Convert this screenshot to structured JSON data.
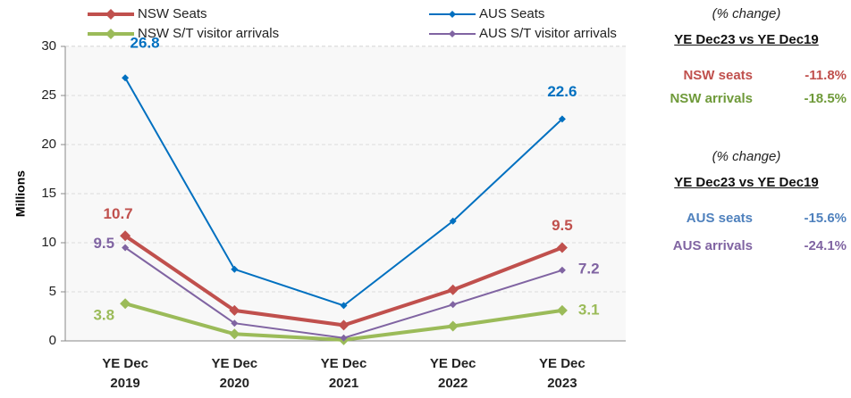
{
  "chart_data": {
    "type": "line",
    "y_label": "Millions",
    "categories": [
      "YE Dec\n2019",
      "YE Dec\n2020",
      "YE Dec\n2021",
      "YE Dec\n2022",
      "YE Dec\n2023"
    ],
    "ylim": [
      0,
      30
    ],
    "yticks": [
      0,
      5,
      10,
      15,
      20,
      25,
      30
    ],
    "grid": true,
    "series": [
      {
        "name": "NSW Seats",
        "color": "#c0504d",
        "values": [
          10.7,
          3.1,
          1.6,
          5.2,
          9.5
        ],
        "value_labels": [
          "10.7",
          null,
          null,
          null,
          "9.5"
        ]
      },
      {
        "name": "AUS Seats",
        "color": "#0070c0",
        "values": [
          26.8,
          7.3,
          3.6,
          12.2,
          22.6
        ],
        "value_labels": [
          "26.8",
          null,
          null,
          null,
          "22.6"
        ]
      },
      {
        "name": "NSW S/T visitor arrivals",
        "color": "#9bbb59",
        "values": [
          3.8,
          0.7,
          0.1,
          1.5,
          3.1
        ],
        "value_labels": [
          "3.8",
          null,
          null,
          null,
          "3.1"
        ]
      },
      {
        "name": "AUS S/T visitor arrivals",
        "color": "#8064a2",
        "values": [
          9.5,
          1.8,
          0.3,
          3.7,
          7.2
        ],
        "value_labels": [
          "9.5",
          null,
          null,
          null,
          "7.2"
        ]
      }
    ]
  },
  "side_panels": [
    {
      "note": "(% change)",
      "heading": "YE Dec23 vs YE Dec19",
      "rows": [
        {
          "label": "NSW seats",
          "value": "-11.8%",
          "color": "#c0504d"
        },
        {
          "label": "NSW arrivals",
          "value": "-18.5%",
          "color": "#6f9a3a"
        }
      ]
    },
    {
      "note": "(% change)",
      "heading": "YE Dec23 vs YE Dec19",
      "rows": [
        {
          "label": "AUS seats",
          "value": "-15.6%",
          "color": "#4f81bd"
        },
        {
          "label": "AUS arrivals",
          "value": "-24.1%",
          "color": "#8064a2"
        }
      ]
    }
  ]
}
